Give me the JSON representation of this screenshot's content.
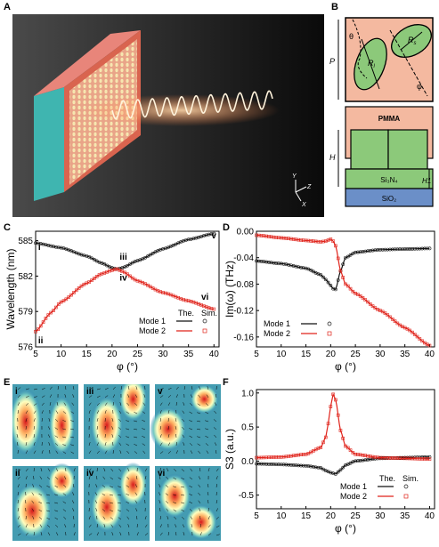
{
  "panels": {
    "A": {
      "letter": "A",
      "axis_labels": {
        "y": "Y",
        "z": "Z",
        "x": "X"
      }
    },
    "B": {
      "letter": "B",
      "top": {
        "theta": "θ",
        "P": "P",
        "Rs": "R",
        "Rs_sub": "s",
        "Rl": "R",
        "Rl_sub": "l",
        "phi": "φ"
      },
      "bottom": {
        "PMMA": "PMMA",
        "Si3N4": "Si₃N₄",
        "SiO2": "SiO₂",
        "H": "H",
        "H1": "H1"
      }
    },
    "C": {
      "letter": "C"
    },
    "D": {
      "letter": "D"
    },
    "E": {
      "letter": "E",
      "labels": [
        "i",
        "iii",
        "v",
        "ii",
        "iv",
        "vi"
      ]
    },
    "F": {
      "letter": "F"
    }
  },
  "colors": {
    "mode1": "#111111",
    "mode2": "#e0231b",
    "pink": "#f4b9a0",
    "green": "#8cc97a",
    "blue": "#6b8fc8"
  },
  "chart_data": [
    {
      "id": "C",
      "type": "line",
      "xlabel": "φ (°)",
      "ylabel": "Wavelength (nm)",
      "xlim": [
        5,
        41
      ],
      "ylim": [
        576,
        585.8
      ],
      "xticks": [
        5,
        10,
        15,
        20,
        25,
        30,
        35,
        40
      ],
      "yticks": [
        576,
        579,
        582,
        585
      ],
      "legend": {
        "header_the": "The.",
        "header_sim": "Sim.",
        "entries": [
          "Mode 1",
          "Mode 2"
        ],
        "placement": "bottom-right"
      },
      "annotations": [
        "i",
        "ii",
        "iii",
        "iv",
        "v",
        "vi"
      ],
      "series": [
        {
          "name": "Mode 1",
          "x": [
            5,
            10,
            15,
            18,
            20,
            21,
            22,
            25,
            30,
            35,
            40
          ],
          "y": [
            584.8,
            584.4,
            583.7,
            583.1,
            582.7,
            582.6,
            582.7,
            583.3,
            584.3,
            585.1,
            585.6
          ]
        },
        {
          "name": "Mode 2",
          "x": [
            5,
            8,
            10,
            15,
            18,
            20,
            21,
            22,
            25,
            30,
            35,
            40
          ],
          "y": [
            577.3,
            578.9,
            579.8,
            581.4,
            582.2,
            582.5,
            582.6,
            582.4,
            581.6,
            580.6,
            579.9,
            579.2
          ]
        }
      ]
    },
    {
      "id": "D",
      "type": "line",
      "xlabel": "φ (°)",
      "ylabel": "Im(ω) (THz)",
      "xlim": [
        5,
        41
      ],
      "ylim": [
        -0.175,
        0.0
      ],
      "xticks": [
        5,
        10,
        15,
        20,
        25,
        30,
        35,
        40
      ],
      "yticks": [
        0.0,
        -0.04,
        -0.08,
        -0.12,
        -0.16
      ],
      "yticklabels": [
        "0.00",
        "-0.04",
        "-0.08",
        "-0.12",
        "-0.16"
      ],
      "legend": {
        "entries": [
          "Mode 1",
          "Mode 2"
        ],
        "placement": "bottom-left"
      },
      "series": [
        {
          "name": "Mode 1",
          "x": [
            5,
            10,
            15,
            18,
            19,
            20,
            20.5,
            21,
            22,
            23,
            25,
            30,
            35,
            40
          ],
          "y": [
            -0.045,
            -0.049,
            -0.056,
            -0.066,
            -0.073,
            -0.082,
            -0.087,
            -0.088,
            -0.06,
            -0.04,
            -0.032,
            -0.028,
            -0.027,
            -0.026
          ]
        },
        {
          "name": "Mode 2",
          "x": [
            5,
            10,
            15,
            18,
            19,
            20,
            20.5,
            21,
            22,
            23,
            25,
            30,
            35,
            40
          ],
          "y": [
            -0.006,
            -0.01,
            -0.014,
            -0.016,
            -0.015,
            -0.012,
            -0.015,
            -0.022,
            -0.06,
            -0.08,
            -0.094,
            -0.12,
            -0.146,
            -0.173
          ]
        }
      ]
    },
    {
      "id": "F",
      "type": "line",
      "xlabel": "φ (°)",
      "ylabel": "S3 (a.u.)",
      "xlim": [
        5,
        41
      ],
      "ylim": [
        -0.7,
        1.05
      ],
      "xticks": [
        5,
        10,
        15,
        20,
        25,
        30,
        35,
        40
      ],
      "yticks": [
        1.0,
        0.5,
        0.0,
        -0.5
      ],
      "yticklabels": [
        "1.0",
        "0.5",
        "0.0",
        "-0.5"
      ],
      "legend": {
        "header_the": "The.",
        "header_sim": "Sim.",
        "entries": [
          "Mode 1",
          "Mode 2"
        ],
        "placement": "bottom-right"
      },
      "series": [
        {
          "name": "Mode 1",
          "x": [
            5,
            10,
            15,
            18,
            19,
            20,
            21,
            22,
            23,
            25,
            30,
            35,
            40
          ],
          "y": [
            -0.04,
            -0.05,
            -0.07,
            -0.1,
            -0.14,
            -0.17,
            -0.19,
            -0.13,
            -0.06,
            0.0,
            0.04,
            0.05,
            0.06
          ]
        },
        {
          "name": "Mode 2",
          "x": [
            5,
            10,
            15,
            18,
            19,
            19.5,
            20,
            20.5,
            21,
            22,
            23,
            25,
            30,
            35,
            40
          ],
          "y": [
            0.05,
            0.06,
            0.1,
            0.2,
            0.35,
            0.55,
            0.8,
            0.98,
            0.9,
            0.45,
            0.22,
            0.1,
            0.05,
            0.04,
            0.03
          ]
        }
      ]
    }
  ]
}
